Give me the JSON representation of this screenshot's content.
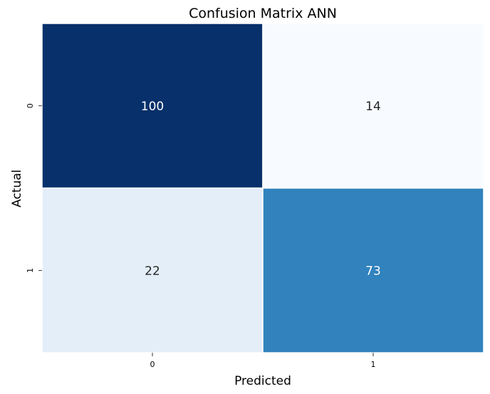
{
  "chart_data": {
    "type": "heatmap",
    "title": "Confusion Matrix ANN",
    "xlabel": "Predicted",
    "ylabel": "Actual",
    "x_categories": [
      "0",
      "1"
    ],
    "y_categories": [
      "0",
      "1"
    ],
    "values": [
      [
        100,
        14
      ],
      [
        22,
        73
      ]
    ],
    "colormap": "Blues",
    "colorbar": false,
    "grid": false,
    "colors": {
      "cells": [
        [
          "#08306b",
          "#f7fbff"
        ],
        [
          "#e3eef9",
          "#3182bd"
        ]
      ],
      "text_on_dark": "#ffffff",
      "text_on_light": "#262626",
      "cell_border": "#ffffff"
    }
  }
}
